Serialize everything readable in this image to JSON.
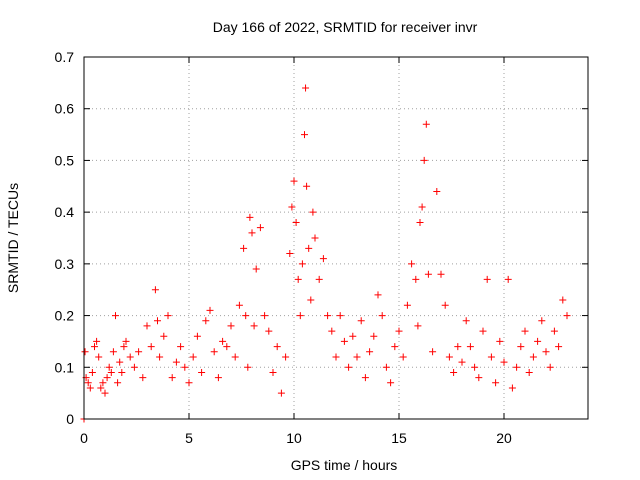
{
  "chart_data": {
    "type": "scatter",
    "title": "Day 166 of 2022, SRMTID for receiver invr",
    "xlabel": "GPS time / hours",
    "ylabel": "SRMTID / TECUs",
    "xlim": [
      0,
      24
    ],
    "ylim": [
      0,
      0.7
    ],
    "grid": true,
    "marker": "+",
    "color": "#ff0000",
    "x_ticks": [
      0,
      5,
      10,
      15,
      20
    ],
    "x_tick_labels": [
      "0",
      "5",
      "10",
      "15",
      "20"
    ],
    "y_ticks": [
      0,
      0.1,
      0.2,
      0.3,
      0.4,
      0.5,
      0.6,
      0.7
    ],
    "y_tick_labels": [
      "0",
      "0.1",
      "0.2",
      "0.3",
      "0.4",
      "0.5",
      "0.6",
      "0.7"
    ],
    "series": [
      {
        "name": "SRMTID",
        "x": [
          0.0,
          0.05,
          0.1,
          0.2,
          0.3,
          0.4,
          0.5,
          0.6,
          0.7,
          0.8,
          0.9,
          1.0,
          1.1,
          1.2,
          1.3,
          1.4,
          1.5,
          1.6,
          1.7,
          1.8,
          1.9,
          2.0,
          2.2,
          2.4,
          2.6,
          2.8,
          3.0,
          3.2,
          3.4,
          3.5,
          3.6,
          3.8,
          4.0,
          4.2,
          4.4,
          4.6,
          4.8,
          5.0,
          5.2,
          5.4,
          5.6,
          5.8,
          6.0,
          6.2,
          6.4,
          6.6,
          6.8,
          7.0,
          7.2,
          7.4,
          7.6,
          7.7,
          7.8,
          7.9,
          8.0,
          8.1,
          8.2,
          8.4,
          8.6,
          8.8,
          9.0,
          9.2,
          9.4,
          9.6,
          9.8,
          9.9,
          10.0,
          10.1,
          10.2,
          10.3,
          10.4,
          10.5,
          10.55,
          10.6,
          10.7,
          10.8,
          10.9,
          11.0,
          11.2,
          11.4,
          11.6,
          11.8,
          12.0,
          12.2,
          12.4,
          12.6,
          12.8,
          13.0,
          13.2,
          13.4,
          13.6,
          13.8,
          14.0,
          14.2,
          14.4,
          14.6,
          14.8,
          15.0,
          15.2,
          15.4,
          15.6,
          15.8,
          15.9,
          16.0,
          16.1,
          16.2,
          16.3,
          16.4,
          16.6,
          16.8,
          17.0,
          17.2,
          17.4,
          17.6,
          17.8,
          18.0,
          18.2,
          18.4,
          18.6,
          18.8,
          19.0,
          19.2,
          19.4,
          19.6,
          19.8,
          20.0,
          20.2,
          20.4,
          20.6,
          20.8,
          21.0,
          21.2,
          21.4,
          21.6,
          21.8,
          22.0,
          22.2,
          22.4,
          22.6,
          22.8,
          23.0
        ],
        "y": [
          0.0,
          0.13,
          0.08,
          0.07,
          0.06,
          0.09,
          0.14,
          0.15,
          0.12,
          0.06,
          0.07,
          0.05,
          0.08,
          0.1,
          0.09,
          0.13,
          0.2,
          0.07,
          0.11,
          0.09,
          0.14,
          0.15,
          0.12,
          0.1,
          0.13,
          0.08,
          0.18,
          0.14,
          0.25,
          0.19,
          0.12,
          0.16,
          0.2,
          0.08,
          0.11,
          0.14,
          0.1,
          0.07,
          0.12,
          0.16,
          0.09,
          0.19,
          0.21,
          0.13,
          0.08,
          0.15,
          0.14,
          0.18,
          0.12,
          0.22,
          0.33,
          0.2,
          0.1,
          0.39,
          0.36,
          0.18,
          0.29,
          0.37,
          0.2,
          0.17,
          0.09,
          0.14,
          0.05,
          0.12,
          0.32,
          0.41,
          0.46,
          0.38,
          0.27,
          0.2,
          0.3,
          0.55,
          0.64,
          0.45,
          0.33,
          0.23,
          0.4,
          0.35,
          0.27,
          0.31,
          0.2,
          0.17,
          0.12,
          0.2,
          0.15,
          0.1,
          0.16,
          0.12,
          0.19,
          0.08,
          0.13,
          0.16,
          0.24,
          0.2,
          0.1,
          0.07,
          0.14,
          0.17,
          0.12,
          0.22,
          0.3,
          0.27,
          0.18,
          0.38,
          0.41,
          0.5,
          0.57,
          0.28,
          0.13,
          0.44,
          0.28,
          0.22,
          0.12,
          0.09,
          0.14,
          0.11,
          0.19,
          0.14,
          0.1,
          0.08,
          0.17,
          0.27,
          0.12,
          0.07,
          0.15,
          0.11,
          0.27,
          0.06,
          0.1,
          0.14,
          0.17,
          0.09,
          0.12,
          0.15,
          0.19,
          0.13,
          0.1,
          0.17,
          0.14,
          0.23,
          0.2
        ]
      }
    ]
  }
}
